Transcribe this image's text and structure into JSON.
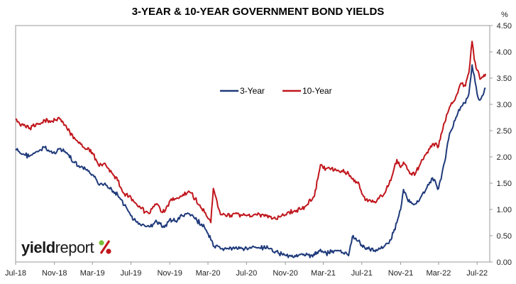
{
  "chart_data": {
    "type": "line",
    "title": "3-YEAR & 10-YEAR GOVERNMENT BOND YIELDS",
    "ylabel": "%",
    "ylim": [
      0,
      4.5
    ],
    "yticks": [
      "0.00",
      "0.50",
      "1.00",
      "1.50",
      "2.00",
      "2.50",
      "3.00",
      "3.50",
      "4.00",
      "4.50"
    ],
    "xlim": [
      "2018-07-01",
      "2022-08-10"
    ],
    "xticks": [
      {
        "date": "2018-07-01",
        "label": "Jul-18"
      },
      {
        "date": "2018-11-01",
        "label": "Nov-18"
      },
      {
        "date": "2019-03-01",
        "label": "Mar-19"
      },
      {
        "date": "2019-07-01",
        "label": "Jul-19"
      },
      {
        "date": "2019-11-01",
        "label": "Nov-19"
      },
      {
        "date": "2020-03-01",
        "label": "Mar-20"
      },
      {
        "date": "2020-07-01",
        "label": "Jul-20"
      },
      {
        "date": "2020-11-01",
        "label": "Nov-20"
      },
      {
        "date": "2021-03-01",
        "label": "Mar-21"
      },
      {
        "date": "2021-07-01",
        "label": "Jul-21"
      },
      {
        "date": "2021-11-01",
        "label": "Nov-21"
      },
      {
        "date": "2022-03-01",
        "label": "Mar-22"
      },
      {
        "date": "2022-07-01",
        "label": "Jul-22"
      }
    ],
    "grid": false,
    "legend": "inside top-center",
    "series": [
      {
        "name": "3-Year",
        "color": "#1f3a7a",
        "points": [
          [
            "2018-07-01",
            2.15
          ],
          [
            "2018-07-20",
            2.05
          ],
          [
            "2018-08-15",
            2.02
          ],
          [
            "2018-09-10",
            2.1
          ],
          [
            "2018-10-01",
            2.18
          ],
          [
            "2018-10-25",
            2.07
          ],
          [
            "2018-11-15",
            2.15
          ],
          [
            "2018-12-10",
            2.08
          ],
          [
            "2018-12-31",
            1.9
          ],
          [
            "2019-01-20",
            1.8
          ],
          [
            "2019-02-10",
            1.75
          ],
          [
            "2019-03-01",
            1.66
          ],
          [
            "2019-03-20",
            1.48
          ],
          [
            "2019-04-10",
            1.5
          ],
          [
            "2019-05-01",
            1.38
          ],
          [
            "2019-05-20",
            1.28
          ],
          [
            "2019-06-10",
            1.08
          ],
          [
            "2019-06-25",
            0.95
          ],
          [
            "2019-07-10",
            0.8
          ],
          [
            "2019-07-25",
            0.72
          ],
          [
            "2019-08-15",
            0.68
          ],
          [
            "2019-08-28",
            0.67
          ],
          [
            "2019-09-15",
            0.76
          ],
          [
            "2019-10-01",
            0.73
          ],
          [
            "2019-10-15",
            0.66
          ],
          [
            "2019-10-31",
            0.8
          ],
          [
            "2019-11-20",
            0.78
          ],
          [
            "2019-12-10",
            0.88
          ],
          [
            "2019-12-31",
            0.92
          ],
          [
            "2020-01-20",
            0.82
          ],
          [
            "2020-02-10",
            0.72
          ],
          [
            "2020-02-25",
            0.6
          ],
          [
            "2020-03-10",
            0.42
          ],
          [
            "2020-03-18",
            0.3
          ],
          [
            "2020-04-10",
            0.25
          ],
          [
            "2020-05-01",
            0.26
          ],
          [
            "2020-06-01",
            0.25
          ],
          [
            "2020-07-01",
            0.27
          ],
          [
            "2020-08-01",
            0.27
          ],
          [
            "2020-09-01",
            0.26
          ],
          [
            "2020-10-01",
            0.2
          ],
          [
            "2020-11-01",
            0.13
          ],
          [
            "2020-12-01",
            0.12
          ],
          [
            "2021-01-01",
            0.12
          ],
          [
            "2021-02-01",
            0.13
          ],
          [
            "2021-02-20",
            0.24
          ],
          [
            "2021-03-10",
            0.17
          ],
          [
            "2021-04-10",
            0.22
          ],
          [
            "2021-05-01",
            0.18
          ],
          [
            "2021-05-20",
            0.12
          ],
          [
            "2021-06-01",
            0.48
          ],
          [
            "2021-06-20",
            0.4
          ],
          [
            "2021-07-01",
            0.32
          ],
          [
            "2021-07-20",
            0.25
          ],
          [
            "2021-08-10",
            0.22
          ],
          [
            "2021-09-10",
            0.3
          ],
          [
            "2021-10-01",
            0.42
          ],
          [
            "2021-10-20",
            0.75
          ],
          [
            "2021-11-01",
            1.0
          ],
          [
            "2021-11-10",
            1.38
          ],
          [
            "2021-11-25",
            1.15
          ],
          [
            "2021-12-15",
            1.1
          ],
          [
            "2022-01-01",
            1.2
          ],
          [
            "2022-01-20",
            1.38
          ],
          [
            "2022-02-10",
            1.6
          ],
          [
            "2022-03-01",
            1.4
          ],
          [
            "2022-03-20",
            1.9
          ],
          [
            "2022-04-05",
            2.45
          ],
          [
            "2022-04-25",
            2.75
          ],
          [
            "2022-05-10",
            2.95
          ],
          [
            "2022-05-25",
            3.02
          ],
          [
            "2022-06-05",
            3.2
          ],
          [
            "2022-06-15",
            3.75
          ],
          [
            "2022-06-22",
            3.55
          ],
          [
            "2022-07-01",
            3.2
          ],
          [
            "2022-07-10",
            3.08
          ],
          [
            "2022-07-20",
            3.18
          ],
          [
            "2022-07-28",
            3.3
          ]
        ]
      },
      {
        "name": "10-Year",
        "color": "#c0161c",
        "points": [
          [
            "2018-07-01",
            2.72
          ],
          [
            "2018-07-20",
            2.62
          ],
          [
            "2018-08-15",
            2.55
          ],
          [
            "2018-09-10",
            2.62
          ],
          [
            "2018-10-01",
            2.7
          ],
          [
            "2018-10-25",
            2.68
          ],
          [
            "2018-11-15",
            2.75
          ],
          [
            "2018-12-10",
            2.55
          ],
          [
            "2018-12-31",
            2.35
          ],
          [
            "2019-01-20",
            2.28
          ],
          [
            "2019-02-10",
            2.15
          ],
          [
            "2019-03-01",
            2.08
          ],
          [
            "2019-03-20",
            1.85
          ],
          [
            "2019-04-10",
            1.88
          ],
          [
            "2019-05-01",
            1.7
          ],
          [
            "2019-05-20",
            1.55
          ],
          [
            "2019-06-10",
            1.3
          ],
          [
            "2019-06-25",
            1.25
          ],
          [
            "2019-07-10",
            1.15
          ],
          [
            "2019-07-25",
            1.05
          ],
          [
            "2019-08-15",
            0.95
          ],
          [
            "2019-08-28",
            0.92
          ],
          [
            "2019-09-15",
            1.1
          ],
          [
            "2019-10-01",
            1.02
          ],
          [
            "2019-10-15",
            0.95
          ],
          [
            "2019-10-31",
            1.15
          ],
          [
            "2019-11-20",
            1.2
          ],
          [
            "2019-12-10",
            1.25
          ],
          [
            "2019-12-31",
            1.35
          ],
          [
            "2020-01-20",
            1.2
          ],
          [
            "2020-02-10",
            1.02
          ],
          [
            "2020-02-25",
            0.88
          ],
          [
            "2020-03-10",
            0.75
          ],
          [
            "2020-03-18",
            1.4
          ],
          [
            "2020-04-10",
            0.9
          ],
          [
            "2020-05-01",
            0.88
          ],
          [
            "2020-06-01",
            0.92
          ],
          [
            "2020-07-01",
            0.88
          ],
          [
            "2020-08-01",
            0.9
          ],
          [
            "2020-09-01",
            0.88
          ],
          [
            "2020-10-01",
            0.82
          ],
          [
            "2020-11-01",
            0.9
          ],
          [
            "2020-12-01",
            0.98
          ],
          [
            "2021-01-01",
            1.05
          ],
          [
            "2021-02-01",
            1.25
          ],
          [
            "2021-02-20",
            1.85
          ],
          [
            "2021-03-10",
            1.78
          ],
          [
            "2021-04-10",
            1.75
          ],
          [
            "2021-05-01",
            1.72
          ],
          [
            "2021-05-20",
            1.68
          ],
          [
            "2021-06-01",
            1.58
          ],
          [
            "2021-06-20",
            1.52
          ],
          [
            "2021-07-01",
            1.3
          ],
          [
            "2021-07-20",
            1.15
          ],
          [
            "2021-08-10",
            1.15
          ],
          [
            "2021-09-10",
            1.3
          ],
          [
            "2021-10-01",
            1.55
          ],
          [
            "2021-10-20",
            1.95
          ],
          [
            "2021-11-01",
            1.8
          ],
          [
            "2021-11-10",
            1.9
          ],
          [
            "2021-11-25",
            1.75
          ],
          [
            "2021-12-15",
            1.65
          ],
          [
            "2022-01-01",
            1.85
          ],
          [
            "2022-01-20",
            2.05
          ],
          [
            "2022-02-10",
            2.25
          ],
          [
            "2022-03-01",
            2.2
          ],
          [
            "2022-03-20",
            2.65
          ],
          [
            "2022-04-05",
            2.95
          ],
          [
            "2022-04-25",
            3.15
          ],
          [
            "2022-05-10",
            3.4
          ],
          [
            "2022-05-25",
            3.35
          ],
          [
            "2022-06-05",
            3.6
          ],
          [
            "2022-06-15",
            4.2
          ],
          [
            "2022-06-22",
            3.85
          ],
          [
            "2022-07-01",
            3.65
          ],
          [
            "2022-07-10",
            3.48
          ],
          [
            "2022-07-20",
            3.52
          ],
          [
            "2022-07-28",
            3.58
          ]
        ]
      }
    ]
  },
  "logo": {
    "part1": "yield",
    "part2": "report",
    "symbol": "%"
  }
}
